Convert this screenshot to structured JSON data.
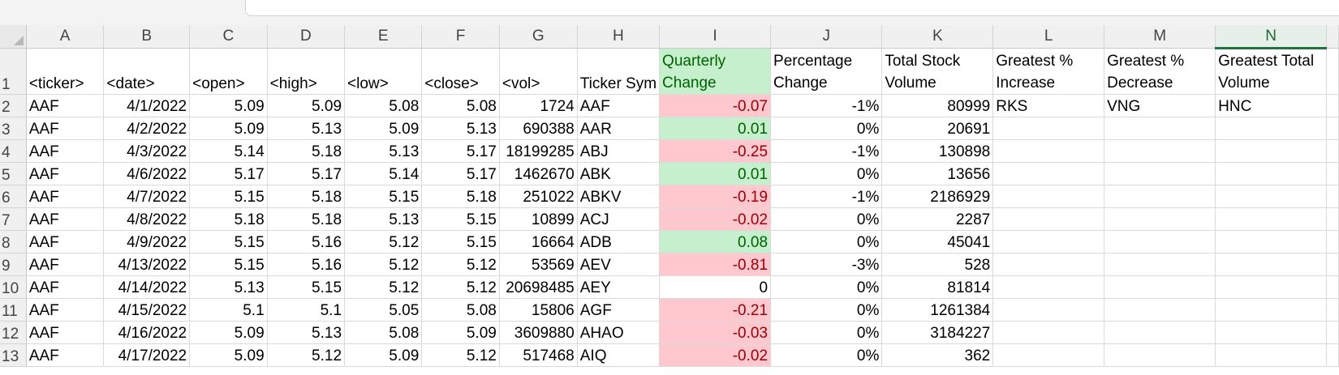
{
  "columns": [
    "A",
    "B",
    "C",
    "D",
    "E",
    "F",
    "G",
    "H",
    "I",
    "J",
    "K",
    "L",
    "M",
    "N"
  ],
  "selected_column": "N",
  "header_row": {
    "row_number": "1",
    "ticker": "<ticker>",
    "date": "<date>",
    "open": "<open>",
    "high": "<high>",
    "low": "<low>",
    "close": "<close>",
    "vol": "<vol>",
    "ticker_symbol": "Ticker Sym",
    "quarterly_change": [
      "Quarterly",
      "Change"
    ],
    "percentage_change": [
      "Percentage",
      "Change"
    ],
    "total_stock_volume": [
      "Total Stock",
      "Volume"
    ],
    "greatest_increase": [
      "Greatest %",
      "Increase"
    ],
    "greatest_decrease": [
      "Greatest %",
      "Decrease"
    ],
    "greatest_total_volume": [
      "Greatest Total",
      "Volume"
    ]
  },
  "rows": [
    {
      "n": "2",
      "ticker": "AAF",
      "date": "4/1/2022",
      "open": "5.09",
      "high": "5.09",
      "low": "5.08",
      "close": "5.08",
      "vol": "1724",
      "symbol": "AAF",
      "qchange": "-0.07",
      "qstatus": "neg",
      "pct": "-1%",
      "total": "80999",
      "inc": "RKS",
      "dec": "VNG",
      "vol_max": "HNC"
    },
    {
      "n": "3",
      "ticker": "AAF",
      "date": "4/2/2022",
      "open": "5.09",
      "high": "5.13",
      "low": "5.09",
      "close": "5.13",
      "vol": "690388",
      "symbol": "AAR",
      "qchange": "0.01",
      "qstatus": "pos",
      "pct": "0%",
      "total": "20691",
      "inc": "",
      "dec": "",
      "vol_max": ""
    },
    {
      "n": "4",
      "ticker": "AAF",
      "date": "4/3/2022",
      "open": "5.14",
      "high": "5.18",
      "low": "5.13",
      "close": "5.17",
      "vol": "18199285",
      "symbol": "ABJ",
      "qchange": "-0.25",
      "qstatus": "neg",
      "pct": "-1%",
      "total": "130898",
      "inc": "",
      "dec": "",
      "vol_max": ""
    },
    {
      "n": "5",
      "ticker": "AAF",
      "date": "4/6/2022",
      "open": "5.17",
      "high": "5.17",
      "low": "5.14",
      "close": "5.17",
      "vol": "1462670",
      "symbol": "ABK",
      "qchange": "0.01",
      "qstatus": "pos",
      "pct": "0%",
      "total": "13656",
      "inc": "",
      "dec": "",
      "vol_max": ""
    },
    {
      "n": "6",
      "ticker": "AAF",
      "date": "4/7/2022",
      "open": "5.15",
      "high": "5.18",
      "low": "5.15",
      "close": "5.18",
      "vol": "251022",
      "symbol": "ABKV",
      "qchange": "-0.19",
      "qstatus": "neg",
      "pct": "-1%",
      "total": "2186929",
      "inc": "",
      "dec": "",
      "vol_max": ""
    },
    {
      "n": "7",
      "ticker": "AAF",
      "date": "4/8/2022",
      "open": "5.18",
      "high": "5.18",
      "low": "5.13",
      "close": "5.15",
      "vol": "10899",
      "symbol": "ACJ",
      "qchange": "-0.02",
      "qstatus": "neg",
      "pct": "0%",
      "total": "2287",
      "inc": "",
      "dec": "",
      "vol_max": ""
    },
    {
      "n": "8",
      "ticker": "AAF",
      "date": "4/9/2022",
      "open": "5.15",
      "high": "5.16",
      "low": "5.12",
      "close": "5.15",
      "vol": "16664",
      "symbol": "ADB",
      "qchange": "0.08",
      "qstatus": "pos",
      "pct": "0%",
      "total": "45041",
      "inc": "",
      "dec": "",
      "vol_max": ""
    },
    {
      "n": "9",
      "ticker": "AAF",
      "date": "4/13/2022",
      "open": "5.15",
      "high": "5.16",
      "low": "5.12",
      "close": "5.12",
      "vol": "53569",
      "symbol": "AEV",
      "qchange": "-0.81",
      "qstatus": "neg",
      "pct": "-3%",
      "total": "528",
      "inc": "",
      "dec": "",
      "vol_max": ""
    },
    {
      "n": "10",
      "ticker": "AAF",
      "date": "4/14/2022",
      "open": "5.13",
      "high": "5.15",
      "low": "5.12",
      "close": "5.12",
      "vol": "20698485",
      "symbol": "AEY",
      "qchange": "0",
      "qstatus": "none",
      "pct": "0%",
      "total": "81814",
      "inc": "",
      "dec": "",
      "vol_max": ""
    },
    {
      "n": "11",
      "ticker": "AAF",
      "date": "4/15/2022",
      "open": "5.1",
      "high": "5.1",
      "low": "5.05",
      "close": "5.08",
      "vol": "15806",
      "symbol": "AGF",
      "qchange": "-0.21",
      "qstatus": "neg",
      "pct": "0%",
      "total": "1261384",
      "inc": "",
      "dec": "",
      "vol_max": ""
    },
    {
      "n": "12",
      "ticker": "AAF",
      "date": "4/16/2022",
      "open": "5.09",
      "high": "5.13",
      "low": "5.08",
      "close": "5.09",
      "vol": "3609880",
      "symbol": "AHAO",
      "qchange": "-0.03",
      "qstatus": "neg",
      "pct": "0%",
      "total": "3184227",
      "inc": "",
      "dec": "",
      "vol_max": ""
    },
    {
      "n": "13",
      "ticker": "AAF",
      "date": "4/17/2022",
      "open": "5.09",
      "high": "5.12",
      "low": "5.09",
      "close": "5.12",
      "vol": "517468",
      "symbol": "AIQ",
      "qchange": "-0.02",
      "qstatus": "neg",
      "pct": "0%",
      "total": "362",
      "inc": "",
      "dec": "",
      "vol_max": ""
    }
  ],
  "colors": {
    "negative_fill": "#ffc7ce",
    "negative_text": "#9c0006",
    "positive_fill": "#c6efce",
    "positive_text": "#006100",
    "selected_column_accent": "#217346"
  }
}
